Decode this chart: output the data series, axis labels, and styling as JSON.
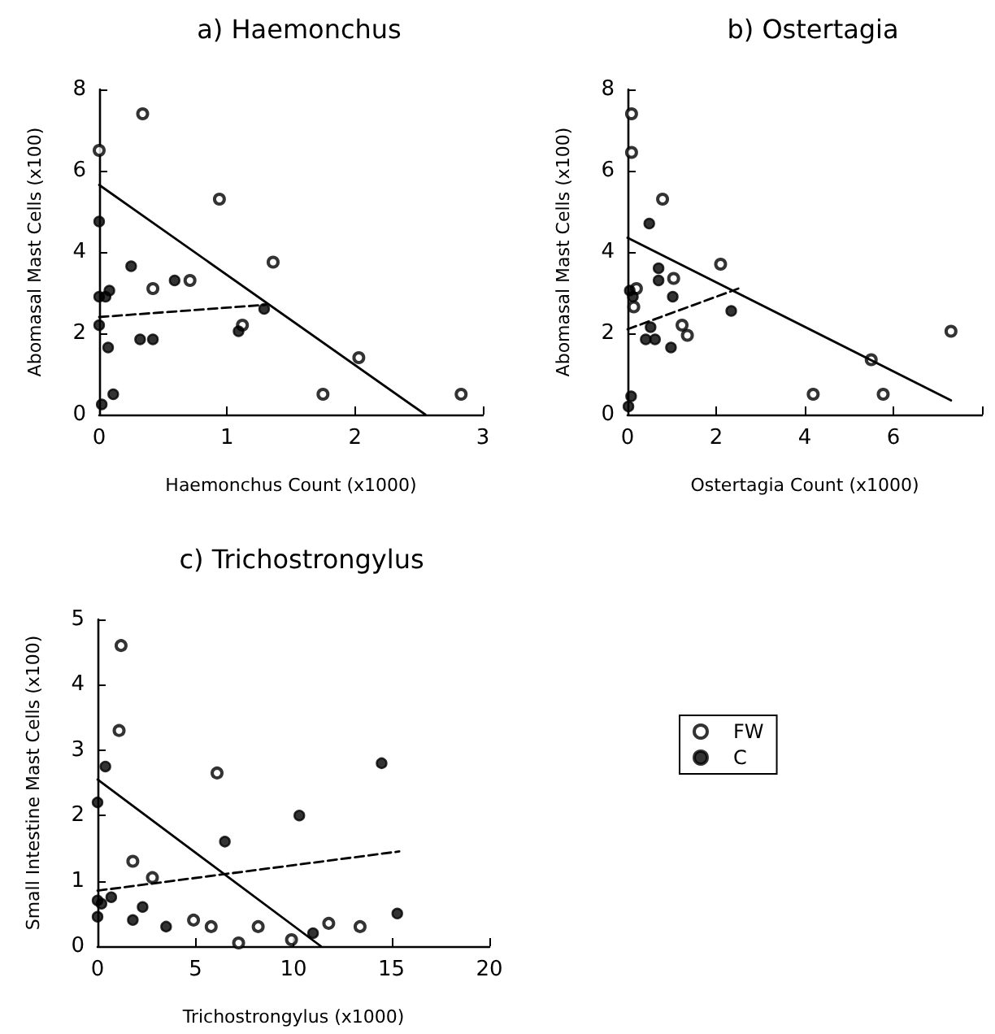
{
  "chart_data": [
    {
      "type": "scatter",
      "title": "a) Haemonchus",
      "xlabel": "Haemonchus Count (x1000)",
      "ylabel": "Abomasal Mast Cells (x100)",
      "xlim": [
        0,
        3
      ],
      "xticks": [
        0,
        1,
        2,
        3
      ],
      "ylim": [
        0,
        8
      ],
      "yticks": [
        0,
        2,
        4,
        6,
        8
      ],
      "grid": false,
      "legend": false,
      "series": [
        {
          "type": "scatter",
          "marker": "circle",
          "color": "#000000",
          "x": [
            0,
            0.34,
            0.94,
            1.36,
            0.71,
            0.42,
            1.12,
            1.75,
            2.03,
            2.83
          ],
          "values": [
            6.5,
            7.4,
            5.3,
            3.75,
            3.3,
            3.1,
            2.2,
            0.5,
            1.4,
            0.5
          ]
        },
        {
          "type": "scatter",
          "marker": "dot",
          "color": "#000000",
          "x": [
            0,
            0.25,
            0,
            0.05,
            0.08,
            0,
            0.07,
            0.32,
            0.42,
            0.11,
            0.02,
            0.59,
            1.1,
            1.29,
            1.09
          ],
          "values": [
            4.75,
            3.65,
            2.9,
            2.9,
            3.05,
            2.2,
            1.65,
            1.85,
            1.85,
            0.5,
            0.25,
            3.3,
            null,
            2.6,
            2.05
          ]
        },
        {
          "type": "line",
          "marker": "none",
          "line_style": "solid",
          "color": "#000000",
          "x": [
            0,
            2.55
          ],
          "values": [
            5.65,
            0
          ]
        },
        {
          "type": "line",
          "marker": "none",
          "line_style": "dashed",
          "color": "#000000",
          "x": [
            0,
            1.3
          ],
          "values": [
            2.4,
            2.7
          ]
        }
      ]
    },
    {
      "type": "scatter",
      "title": "b) Ostertagia",
      "xlabel": "Ostertagia Count (x1000)",
      "ylabel": "Abomasal Mast Cells (x100)",
      "xlim": [
        0,
        8
      ],
      "xticks": [
        0,
        2,
        4,
        6,
        {
          "value": 8,
          "label": null
        }
      ],
      "ylim": [
        0,
        8
      ],
      "yticks": [
        0,
        2,
        4,
        6,
        8
      ],
      "grid": false,
      "legend": false,
      "series": [
        {
          "type": "scatter",
          "marker": "circle",
          "color": "#000000",
          "x": [
            0.09,
            0.09,
            0.79,
            0.2,
            0.14,
            1.04,
            2.1,
            1.23,
            1.35,
            4.19,
            5.5,
            5.77,
            7.3
          ],
          "values": [
            7.4,
            6.45,
            5.3,
            3.1,
            2.65,
            3.35,
            3.7,
            2.2,
            1.95,
            0.5,
            1.35,
            0.5,
            2.05
          ]
        },
        {
          "type": "scatter",
          "marker": "dot",
          "color": "#000000",
          "x": [
            0.49,
            0.7,
            0.7,
            1.02,
            0.05,
            0.12,
            0.52,
            0.41,
            0.62,
            0.98,
            2.34,
            0.08,
            0.02
          ],
          "values": [
            4.7,
            3.6,
            3.3,
            2.9,
            3.05,
            2.9,
            2.15,
            1.85,
            1.85,
            1.65,
            2.55,
            0.45,
            0.2
          ]
        },
        {
          "type": "line",
          "marker": "none",
          "line_style": "solid",
          "color": "#000000",
          "x": [
            0,
            7.3
          ],
          "values": [
            4.35,
            0.35
          ]
        },
        {
          "type": "line",
          "marker": "none",
          "line_style": "dashed",
          "color": "#000000",
          "x": [
            0,
            2.5
          ],
          "values": [
            2.1,
            3.1
          ]
        }
      ]
    },
    {
      "type": "scatter",
      "title": "c) Trichostrongylus",
      "xlabel": "Trichostrongylus (x1000)",
      "ylabel": "Small Intestine Mast Cells (x100)",
      "xlim": [
        0,
        20
      ],
      "xticks": [
        0,
        5,
        10,
        15,
        20
      ],
      "ylim": [
        0,
        5
      ],
      "yticks": [
        0,
        1,
        2,
        3,
        4,
        5
      ],
      "grid": false,
      "legend": "right",
      "series": [
        {
          "name": "FW",
          "type": "scatter",
          "marker": "circle",
          "color": "#000000",
          "x": [
            1.2,
            1.1,
            1.8,
            2.8,
            6.1,
            4.9,
            5.8,
            7.2,
            8.2,
            9.9,
            11.8,
            13.4
          ],
          "values": [
            4.6,
            3.3,
            1.3,
            1.05,
            2.65,
            0.4,
            0.3,
            0.05,
            0.3,
            0.1,
            0.35,
            0.3
          ]
        },
        {
          "name": "C",
          "type": "scatter",
          "marker": "dot",
          "color": "#000000",
          "x": [
            0,
            0.4,
            0,
            0.2,
            0,
            0.7,
            2.3,
            1.8,
            3.5,
            6.5,
            10.3,
            11.0,
            14.5,
            15.3
          ],
          "values": [
            2.2,
            2.75,
            0.7,
            0.65,
            0.45,
            0.75,
            0.6,
            0.4,
            0.3,
            1.6,
            2.0,
            0.2,
            2.8,
            0.5
          ]
        },
        {
          "type": "line",
          "marker": "none",
          "line_style": "solid",
          "color": "#000000",
          "x": [
            0,
            11.4
          ],
          "values": [
            2.55,
            0
          ]
        },
        {
          "type": "line",
          "marker": "none",
          "line_style": "dashed",
          "color": "#000000",
          "x": [
            0,
            15.4
          ],
          "values": [
            0.85,
            1.45
          ]
        }
      ]
    }
  ]
}
